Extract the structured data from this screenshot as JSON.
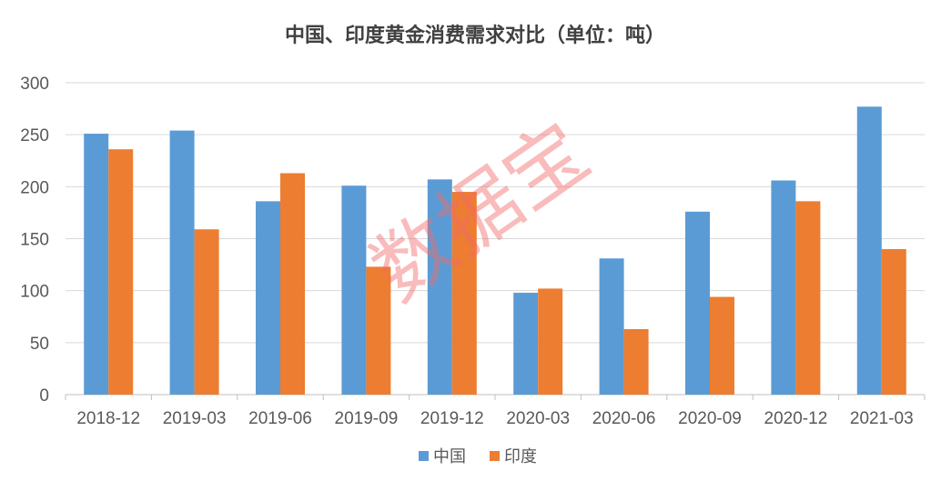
{
  "chart_data": {
    "type": "bar",
    "title": "中国、印度黄金消费需求对比（单位：吨）",
    "categories": [
      "2018-12",
      "2019-03",
      "2019-06",
      "2019-09",
      "2019-12",
      "2020-03",
      "2020-06",
      "2020-09",
      "2020-12",
      "2021-03"
    ],
    "series": [
      {
        "name": "中国",
        "color": "#5b9bd5",
        "values": [
          251,
          254,
          186,
          201,
          207,
          98,
          131,
          176,
          206,
          277
        ]
      },
      {
        "name": "印度",
        "color": "#ed7d31",
        "values": [
          236,
          159,
          213,
          123,
          195,
          102,
          63,
          94,
          186,
          140
        ]
      }
    ],
    "ylim": [
      0,
      300
    ],
    "yticks": [
      0,
      50,
      100,
      150,
      200,
      250,
      300
    ],
    "grid": true,
    "legend": "bottom",
    "watermark": "数据宝"
  }
}
